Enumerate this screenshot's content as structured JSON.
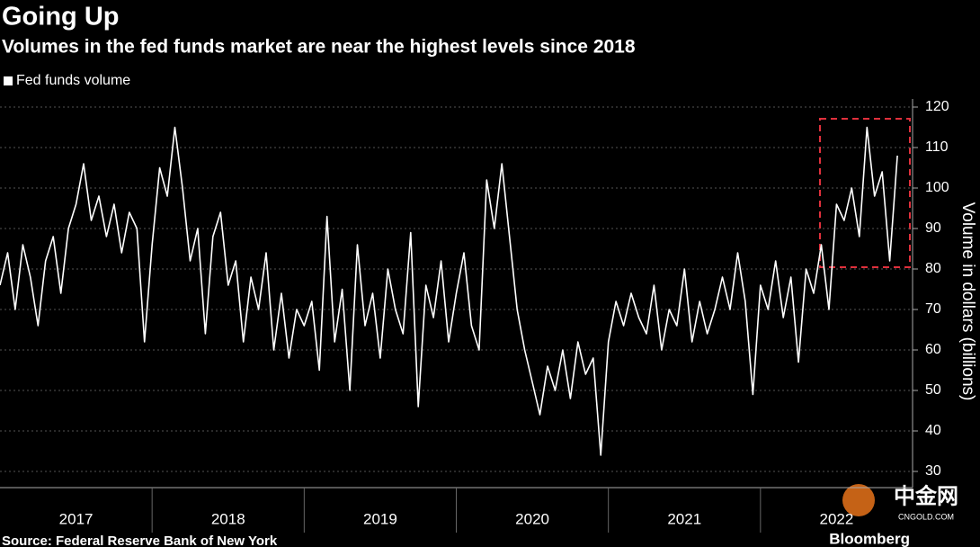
{
  "chart_data": {
    "type": "line",
    "title": "Going Up",
    "subtitle": "Volumes in the fed funds market are near the highest levels since 2018",
    "y_label": "Volume in dollars (billions)",
    "source": "Source: Federal Reserve Bank of New York",
    "brand": "Bloomberg",
    "watermark": "中金网",
    "watermark_url": "CNGOLD.COM",
    "grid": true,
    "y_axis_side": "right",
    "legend": "top-left",
    "xlim": [
      2017,
      2023
    ],
    "xticks": [
      2017,
      2018,
      2019,
      2020,
      2021,
      2022
    ],
    "ylim": [
      26,
      122
    ],
    "yticks": [
      30,
      40,
      50,
      60,
      70,
      80,
      90,
      100,
      110,
      120
    ],
    "x": [
      2017,
      2017.05,
      2017.1,
      2017.15,
      2017.2,
      2017.25,
      2017.3,
      2017.35,
      2017.4,
      2017.45,
      2017.5,
      2017.55,
      2017.6,
      2017.65,
      2017.7,
      2017.75,
      2017.8,
      2017.85,
      2017.9,
      2017.95,
      2018,
      2018.05,
      2018.1,
      2018.15,
      2018.2,
      2018.25,
      2018.3,
      2018.35,
      2018.4,
      2018.45,
      2018.5,
      2018.55,
      2018.6,
      2018.65,
      2018.7,
      2018.75,
      2018.8,
      2018.85,
      2018.9,
      2018.95,
      2019,
      2019.05,
      2019.1,
      2019.15,
      2019.2,
      2019.25,
      2019.3,
      2019.35,
      2019.4,
      2019.45,
      2019.5,
      2019.55,
      2019.6,
      2019.65,
      2019.7,
      2019.75,
      2019.8,
      2019.85,
      2019.9,
      2019.95,
      2020,
      2020.05,
      2020.1,
      2020.15,
      2020.2,
      2020.25,
      2020.3,
      2020.35,
      2020.4,
      2020.45,
      2020.5,
      2020.55,
      2020.6,
      2020.65,
      2020.7,
      2020.75,
      2020.8,
      2020.85,
      2020.9,
      2020.95,
      2021,
      2021.05,
      2021.1,
      2021.15,
      2021.2,
      2021.25,
      2021.3,
      2021.35,
      2021.4,
      2021.45,
      2021.5,
      2021.55,
      2021.6,
      2021.65,
      2021.7,
      2021.75,
      2021.8,
      2021.85,
      2021.9,
      2021.95,
      2022,
      2022.05,
      2022.1,
      2022.15,
      2022.2,
      2022.25,
      2022.3,
      2022.35,
      2022.4,
      2022.45,
      2022.5,
      2022.55,
      2022.6,
      2022.65,
      2022.7,
      2022.75,
      2022.8,
      2022.85,
      2022.9
    ],
    "series": [
      {
        "name": "Fed funds volume",
        "color": "#ffffff",
        "values": [
          76,
          84,
          70,
          86,
          78,
          66,
          82,
          88,
          74,
          90,
          96,
          106,
          92,
          98,
          88,
          96,
          84,
          94,
          90,
          62,
          86,
          105,
          98,
          115,
          100,
          82,
          90,
          64,
          88,
          94,
          76,
          82,
          62,
          78,
          70,
          84,
          60,
          74,
          58,
          70,
          66,
          72,
          55,
          93,
          62,
          75,
          50,
          86,
          66,
          74,
          58,
          80,
          70,
          64,
          89,
          46,
          76,
          68,
          82,
          62,
          74,
          84,
          66,
          60,
          102,
          90,
          106,
          88,
          70,
          60,
          52,
          44,
          56,
          50,
          60,
          48,
          62,
          54,
          58,
          34,
          62,
          72,
          66,
          74,
          68,
          64,
          76,
          60,
          70,
          66,
          80,
          62,
          72,
          64,
          70,
          78,
          70,
          84,
          72,
          49,
          76,
          70,
          82,
          68,
          78,
          57,
          80,
          74,
          86,
          70,
          96,
          92,
          100,
          88,
          115,
          98,
          104,
          82,
          108
        ]
      }
    ]
  }
}
